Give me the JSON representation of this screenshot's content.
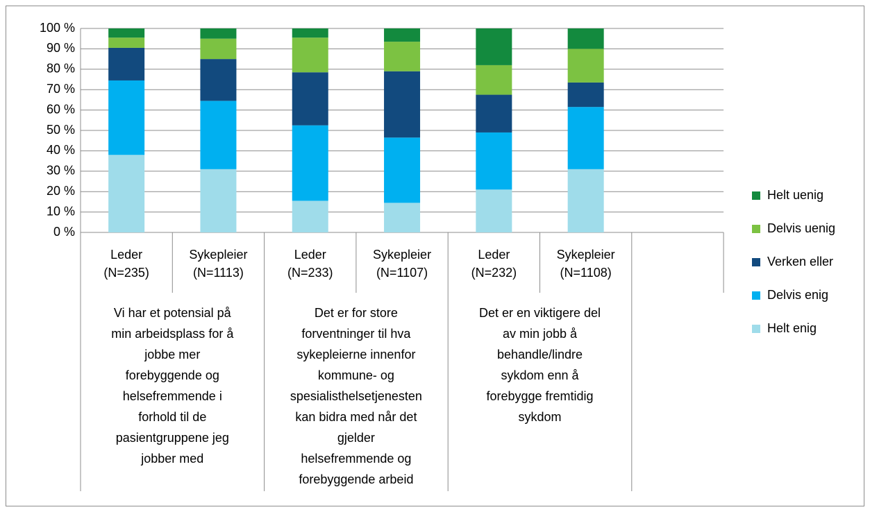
{
  "chart_data": {
    "type": "stacked_bar",
    "categories": [
      [
        "Leder",
        "(N=235)"
      ],
      [
        "Sykepleier",
        "(N=1113)"
      ],
      [
        "Leder",
        "(N=233)"
      ],
      [
        "Sykepleier",
        "(N=1107)"
      ],
      [
        "Leder",
        "(N=232)"
      ],
      [
        "Sykepleier",
        "(N=1108)"
      ],
      null
    ],
    "groups": [
      [
        "Vi har et potensial på",
        "min arbeidsplass for å",
        "jobbe mer",
        "forebyggende og",
        "helsefremmende i",
        "forhold til de",
        "pasientgruppene jeg",
        "jobber med"
      ],
      [
        "Det er for store",
        "forventninger til hva",
        "sykepleierne innenfor",
        "kommune- og",
        "spesialisthelsetjenesten",
        "kan bidra med når det",
        "gjelder",
        "helsefremmende og",
        "forebyggende arbeid"
      ],
      [
        "Det er en viktigere del",
        "av min jobb å",
        "behandle/lindre",
        "sykdom enn å",
        "forebygge fremtidig",
        "sykdom"
      ]
    ],
    "series": [
      {
        "name": "Helt enig",
        "color": "#9fdcea",
        "values": [
          38,
          31,
          15.5,
          14.5,
          21,
          31,
          null
        ]
      },
      {
        "name": "Delvis enig",
        "color": "#00b0f0",
        "values": [
          36.5,
          33.5,
          37,
          32,
          28,
          30.5,
          null
        ]
      },
      {
        "name": "Verken eller",
        "color": "#124a7e",
        "values": [
          16,
          20.5,
          26,
          32.5,
          18.5,
          12,
          null
        ]
      },
      {
        "name": "Delvis uenig",
        "color": "#7cc242",
        "values": [
          5,
          10,
          17,
          14.5,
          14.5,
          16.5,
          null
        ]
      },
      {
        "name": "Helt uenig",
        "color": "#138a3e",
        "values": [
          4.5,
          5,
          4.5,
          6.5,
          18,
          10,
          null
        ]
      }
    ],
    "ylim": [
      0,
      100
    ],
    "yticks": [
      {
        "value": 0,
        "label": "0 %"
      },
      {
        "value": 10,
        "label": "10 %"
      },
      {
        "value": 20,
        "label": "20 %"
      },
      {
        "value": 30,
        "label": "30 %"
      },
      {
        "value": 40,
        "label": "40 %"
      },
      {
        "value": 50,
        "label": "50 %"
      },
      {
        "value": 60,
        "label": "60 %"
      },
      {
        "value": 70,
        "label": "70 %"
      },
      {
        "value": 80,
        "label": "80 %"
      },
      {
        "value": 90,
        "label": "90 %"
      },
      {
        "value": 100,
        "label": "100 %"
      }
    ],
    "grid": true,
    "legend": "right"
  }
}
